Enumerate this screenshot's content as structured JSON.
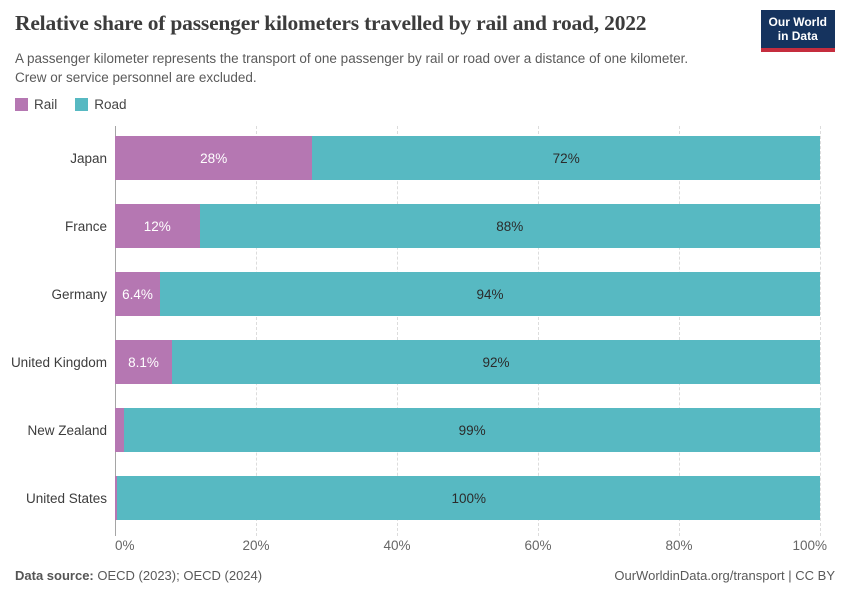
{
  "header": {
    "title": "Relative share of passenger kilometers travelled by rail and road, 2022",
    "subtitle": "A passenger kilometer represents the transport of one passenger by rail or road over a distance of one kilometer. Crew or service personnel are excluded.",
    "logo": {
      "line1": "Our World",
      "line2": "in Data"
    }
  },
  "colors": {
    "rail": "#b577b2",
    "road": "#57b9c2",
    "logo_navy": "#15335e",
    "logo_red": "#c52d3e",
    "grid": "#dcdcdc",
    "axis_spine": "#a5a5a5"
  },
  "chart_data": {
    "type": "bar",
    "stacked": true,
    "orientation": "horizontal",
    "title": "Relative share of passenger kilometers travelled by rail and road, 2022",
    "categories": [
      "Japan",
      "France",
      "Germany",
      "United Kingdom",
      "New Zealand",
      "United States"
    ],
    "series": [
      {
        "name": "Rail",
        "color": "#b577b2",
        "values": [
          28,
          12,
          6.4,
          8.1,
          1.3,
          0.35
        ],
        "labels": [
          "28%",
          "12%",
          "6.4%",
          "8.1%",
          "",
          ""
        ]
      },
      {
        "name": "Road",
        "color": "#57b9c2",
        "values": [
          72,
          88,
          94,
          92,
          99,
          100
        ],
        "labels": [
          "72%",
          "88%",
          "94%",
          "92%",
          "99%",
          "100%"
        ]
      }
    ],
    "xlabel": "",
    "ylabel": "",
    "xlim": [
      0,
      100
    ],
    "x_ticks": [
      {
        "value": 0,
        "label": "0%"
      },
      {
        "value": 20,
        "label": "20%"
      },
      {
        "value": 40,
        "label": "40%"
      },
      {
        "value": 60,
        "label": "60%"
      },
      {
        "value": 80,
        "label": "80%"
      },
      {
        "value": 100,
        "label": "100%"
      }
    ],
    "grid": true,
    "legend_position": "top-left"
  },
  "legend": [
    {
      "label": "Rail",
      "color": "#b577b2"
    },
    {
      "label": "Road",
      "color": "#57b9c2"
    }
  ],
  "footer": {
    "source_label": "Data source:",
    "source_value": " OECD (2023); OECD (2024)",
    "link": "OurWorldinData.org/transport | CC BY"
  }
}
